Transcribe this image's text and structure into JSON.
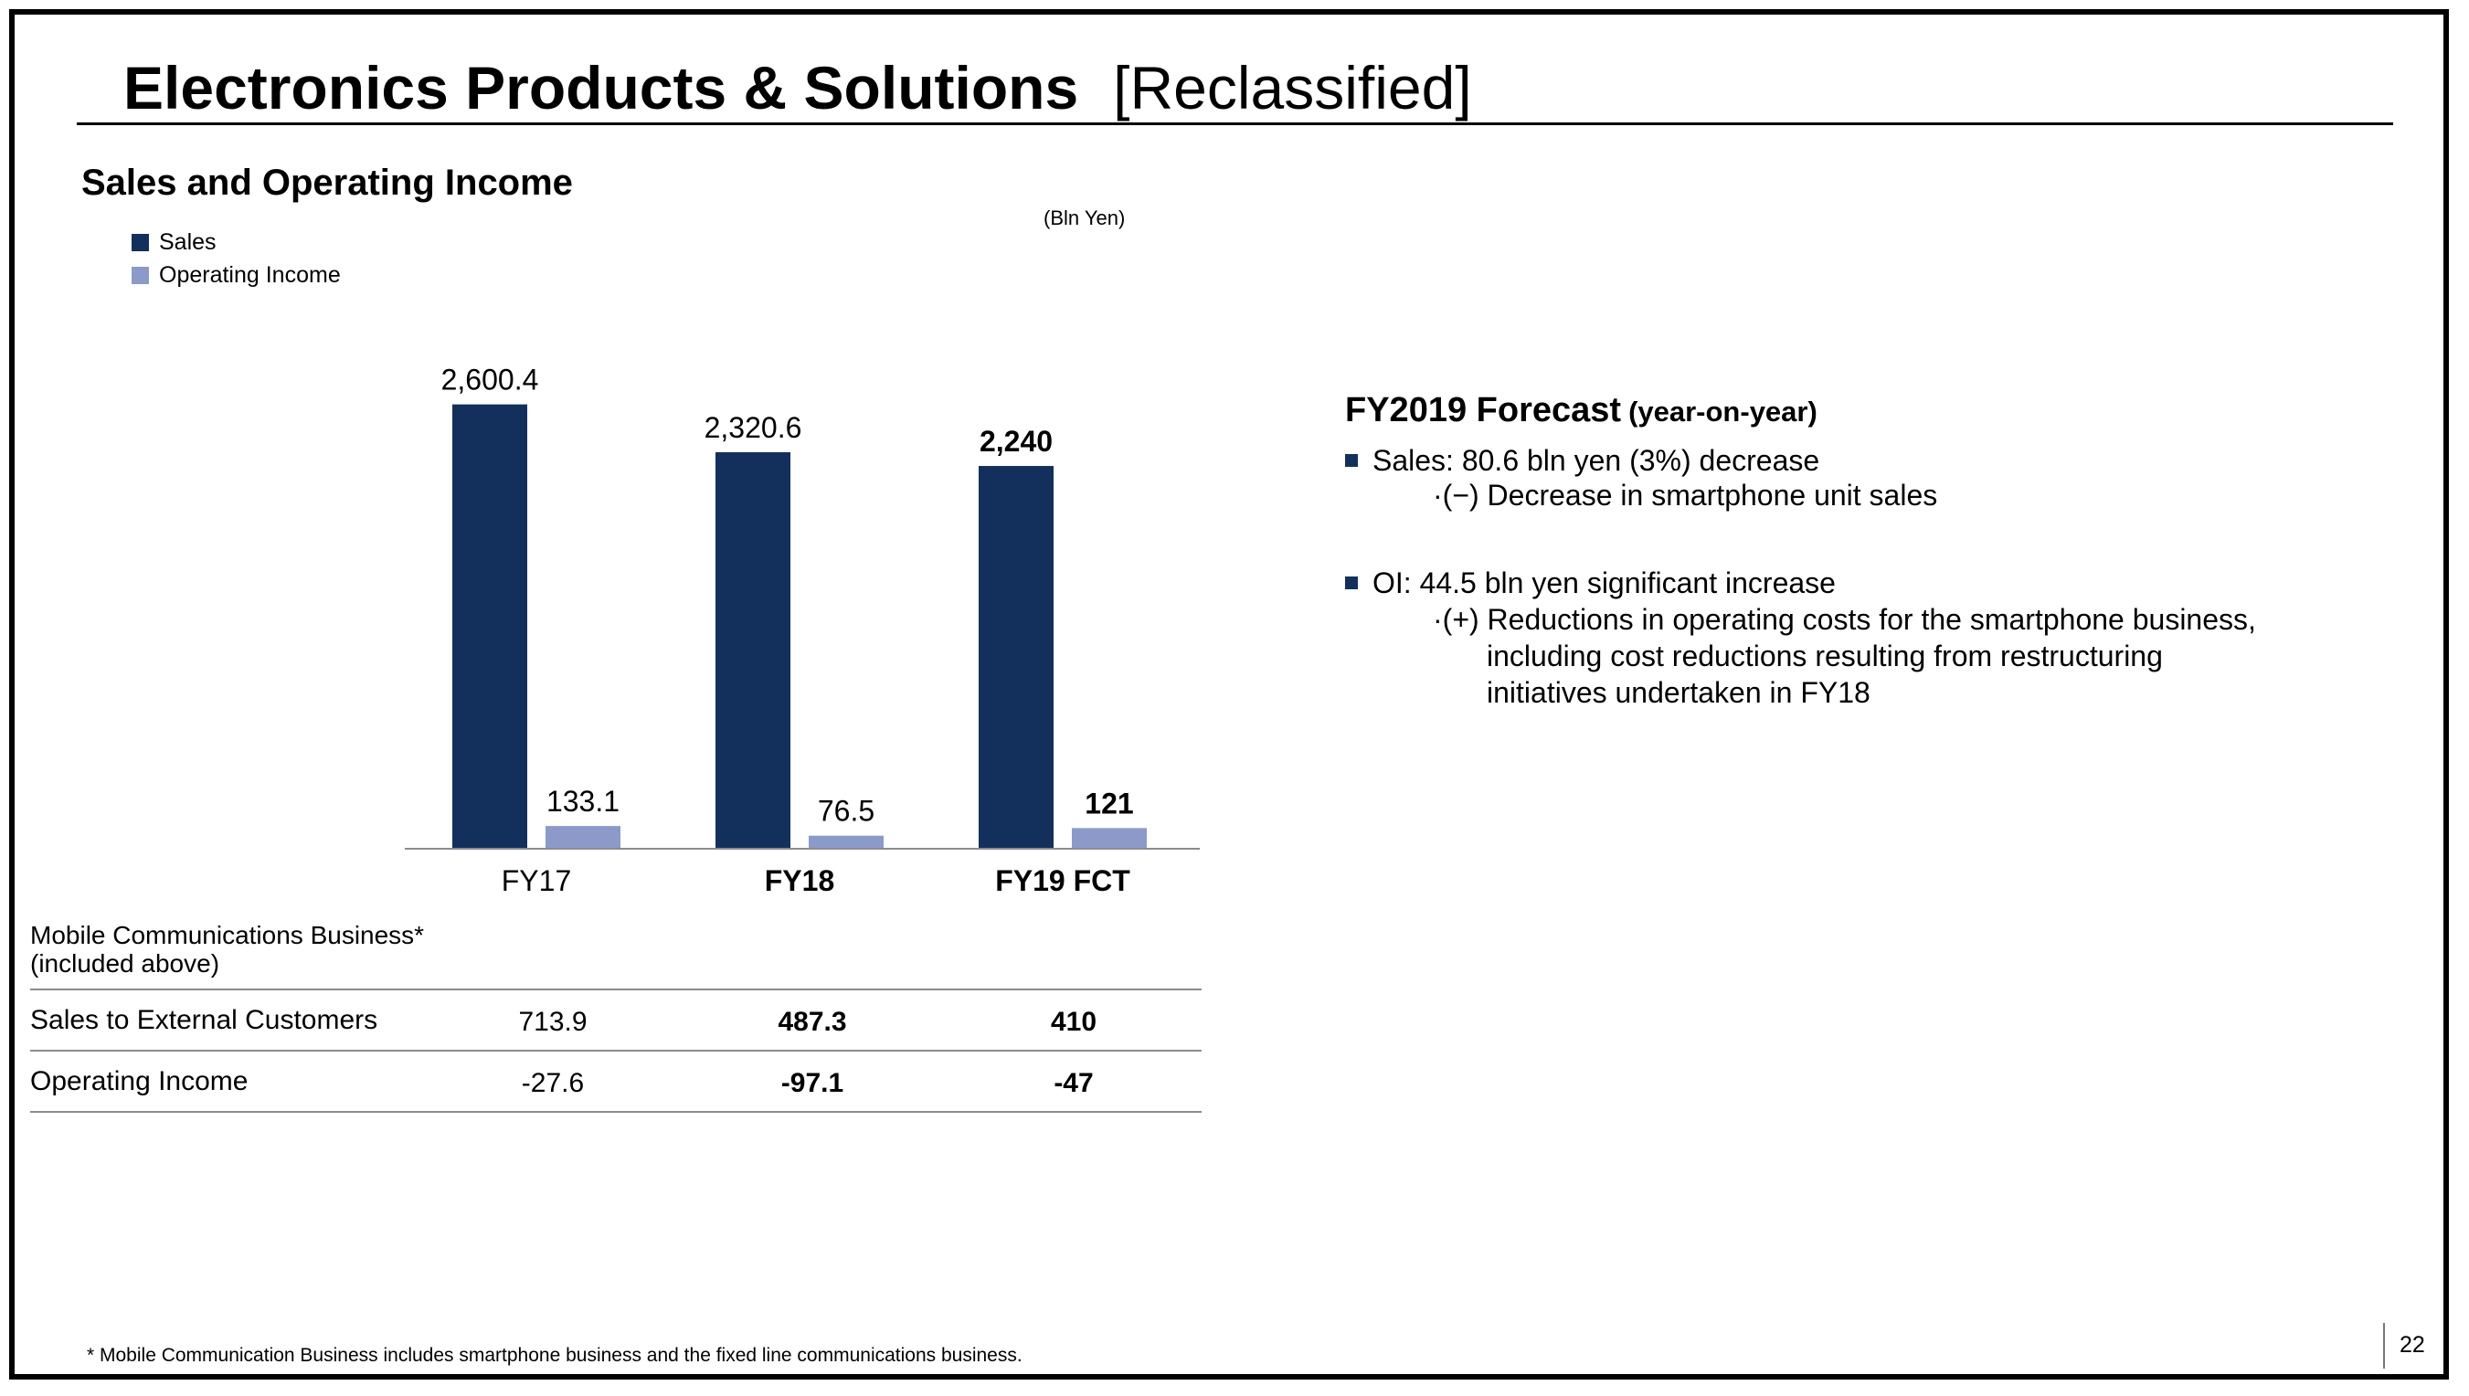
{
  "title": {
    "main": "Electronics Products & Solutions",
    "tag": "[Reclassified]"
  },
  "section_title": "Sales and Operating Income",
  "unit": "(Bln Yen)",
  "colors": {
    "sales": "#13305d",
    "operating_income": "#8b9ac9"
  },
  "chart_data": {
    "type": "bar",
    "categories": [
      "FY17",
      "FY18",
      "FY19 FCT"
    ],
    "category_bold": [
      false,
      true,
      true
    ],
    "series": [
      {
        "name": "Sales",
        "values": [
          2600.4,
          2320.6,
          2240
        ],
        "labels": [
          "2,600.4",
          "2,320.6",
          "2,240"
        ],
        "color": "#13305d"
      },
      {
        "name": "Operating Income",
        "values": [
          133.1,
          76.5,
          121
        ],
        "labels": [
          "133.1",
          "76.5",
          "121"
        ],
        "color": "#8b9ac9"
      }
    ],
    "label_bold": [
      false,
      false,
      true
    ],
    "ylim": [
      0,
      2700
    ],
    "grid": false,
    "legend_position": "top-left",
    "xlabel": "",
    "ylabel": ""
  },
  "mobile_table": {
    "label_line1": "Mobile Communications Business*",
    "label_line2": " (included above)",
    "rows": [
      {
        "label": "Sales to External Customers",
        "values": [
          "713.9",
          "487.3",
          "410"
        ]
      },
      {
        "label": "Operating Income",
        "values": [
          "-27.6",
          "-97.1",
          "-47"
        ]
      }
    ]
  },
  "forecast": {
    "title": "FY2019 Forecast",
    "title_sub": "(year-on-year)",
    "sales_bullet": "Sales: 80.6 bln yen (3%) decrease",
    "sales_detail": "·(−) Decrease in smartphone unit sales",
    "oi_bullet": "OI: 44.5 bln yen significant increase",
    "oi_detail_1": "·(+) Reductions in operating costs for the smartphone business,",
    "oi_detail_2": "including cost reductions resulting from restructuring",
    "oi_detail_3": "initiatives undertaken in FY18"
  },
  "footnote": "* Mobile Communication Business includes smartphone business and the fixed line communications business.",
  "page_number": "22"
}
